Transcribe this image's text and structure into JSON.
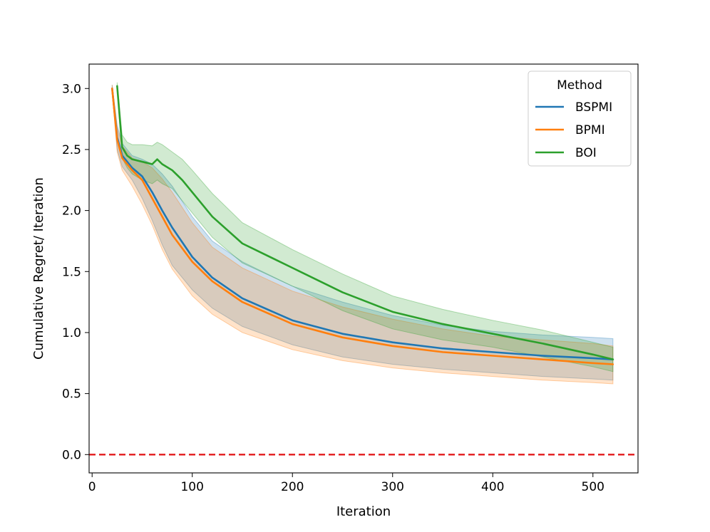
{
  "chart_data": {
    "type": "line",
    "title": "",
    "xlabel": "Iteration",
    "ylabel": "Cumulative Regret/ Iteration",
    "xlim": [
      -3,
      545
    ],
    "ylim": [
      -0.15,
      3.2
    ],
    "xticks": [
      0,
      100,
      200,
      300,
      400,
      500
    ],
    "xtick_labels": [
      "0",
      "100",
      "200",
      "300",
      "400",
      "500"
    ],
    "yticks": [
      0.0,
      0.5,
      1.0,
      1.5,
      2.0,
      2.5,
      3.0
    ],
    "ytick_labels": [
      "0.0",
      "0.5",
      "1.0",
      "1.5",
      "2.0",
      "2.5",
      "3.0"
    ],
    "legend": {
      "title": "Method",
      "placement": "top-right",
      "entries": [
        "BSPMI",
        "BPMI",
        "BOI"
      ]
    },
    "reference_line": {
      "y": 0.0,
      "style": "dashed",
      "color": "#e31a1c"
    },
    "series": [
      {
        "name": "BSPMI",
        "color": "#1f77b4",
        "x": [
          20,
          25,
          30,
          40,
          50,
          60,
          70,
          80,
          100,
          120,
          150,
          200,
          250,
          300,
          350,
          400,
          450,
          500,
          520
        ],
        "mean": [
          3.0,
          2.6,
          2.45,
          2.35,
          2.28,
          2.15,
          2.0,
          1.86,
          1.62,
          1.45,
          1.28,
          1.1,
          0.99,
          0.92,
          0.87,
          0.84,
          0.81,
          0.79,
          0.78
        ],
        "lower": [
          2.97,
          2.5,
          2.36,
          2.25,
          2.1,
          1.92,
          1.72,
          1.55,
          1.35,
          1.2,
          1.05,
          0.9,
          0.8,
          0.74,
          0.7,
          0.67,
          0.64,
          0.62,
          0.61
        ],
        "upper": [
          3.03,
          2.7,
          2.55,
          2.45,
          2.42,
          2.38,
          2.3,
          2.2,
          1.95,
          1.75,
          1.58,
          1.38,
          1.25,
          1.14,
          1.06,
          1.01,
          0.98,
          0.96,
          0.95
        ]
      },
      {
        "name": "BPMI",
        "color": "#ff7f0e",
        "x": [
          20,
          25,
          30,
          40,
          50,
          60,
          70,
          80,
          100,
          120,
          150,
          200,
          250,
          300,
          350,
          400,
          450,
          500,
          520
        ],
        "mean": [
          3.0,
          2.58,
          2.43,
          2.33,
          2.25,
          2.1,
          1.95,
          1.8,
          1.58,
          1.42,
          1.25,
          1.07,
          0.96,
          0.89,
          0.84,
          0.81,
          0.78,
          0.75,
          0.74
        ],
        "lower": [
          2.97,
          2.48,
          2.33,
          2.2,
          2.05,
          1.88,
          1.68,
          1.52,
          1.3,
          1.15,
          1.0,
          0.86,
          0.77,
          0.71,
          0.67,
          0.64,
          0.61,
          0.59,
          0.58
        ],
        "upper": [
          3.03,
          2.68,
          2.53,
          2.43,
          2.4,
          2.35,
          2.26,
          2.15,
          1.9,
          1.7,
          1.53,
          1.34,
          1.21,
          1.11,
          1.03,
          0.97,
          0.94,
          0.91,
          0.89
        ]
      },
      {
        "name": "BOI",
        "color": "#2ca02c",
        "x": [
          25,
          30,
          35,
          40,
          50,
          60,
          65,
          70,
          80,
          90,
          100,
          120,
          150,
          200,
          250,
          300,
          350,
          400,
          450,
          500,
          520
        ],
        "mean": [
          3.02,
          2.52,
          2.45,
          2.42,
          2.4,
          2.38,
          2.42,
          2.38,
          2.33,
          2.25,
          2.15,
          1.95,
          1.73,
          1.53,
          1.33,
          1.17,
          1.07,
          0.99,
          0.91,
          0.82,
          0.78
        ],
        "lower": [
          3.0,
          2.43,
          2.35,
          2.3,
          2.25,
          2.22,
          2.25,
          2.22,
          2.18,
          2.08,
          1.98,
          1.78,
          1.57,
          1.38,
          1.18,
          1.03,
          0.94,
          0.88,
          0.8,
          0.72,
          0.68
        ],
        "upper": [
          3.05,
          2.62,
          2.56,
          2.54,
          2.54,
          2.53,
          2.56,
          2.54,
          2.48,
          2.42,
          2.33,
          2.14,
          1.9,
          1.68,
          1.48,
          1.3,
          1.19,
          1.1,
          1.02,
          0.92,
          0.88
        ]
      }
    ]
  }
}
